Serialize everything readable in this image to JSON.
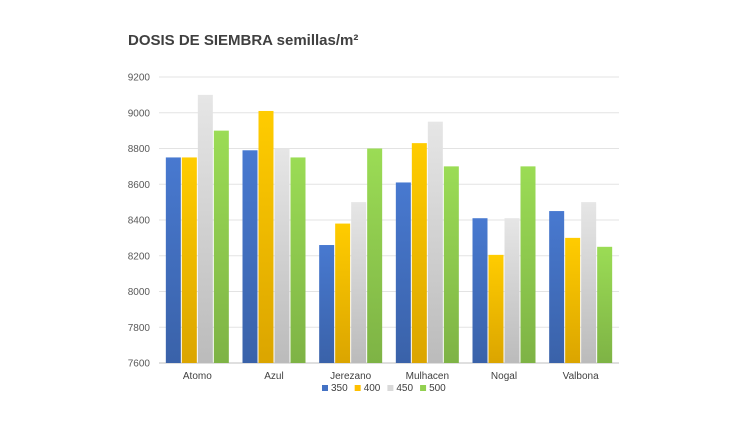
{
  "chart_data": {
    "type": "bar",
    "title": "DOSIS DE SIEMBRA semillas/m²",
    "xlabel": "",
    "ylabel": "",
    "categories": [
      "Atomo",
      "Azul",
      "Jerezano",
      "Mulhacen",
      "Nogal",
      "Valbona"
    ],
    "series": [
      {
        "name": "350",
        "color": "#4472C4",
        "values": [
          8750,
          8790,
          8260,
          8610,
          8410,
          8450
        ]
      },
      {
        "name": "400",
        "color": "#FFC000",
        "values": [
          8750,
          9010,
          8380,
          8830,
          8205,
          8300
        ]
      },
      {
        "name": "450",
        "color": "#D9D9D9",
        "values": [
          9100,
          8800,
          8500,
          8950,
          8410,
          8500
        ]
      },
      {
        "name": "500",
        "color": "#92D050",
        "values": [
          8900,
          8750,
          8800,
          8700,
          8700,
          8250
        ]
      }
    ],
    "ylim": [
      7600,
      9200
    ],
    "yticks": [
      7600,
      7800,
      8000,
      8200,
      8400,
      8600,
      8800,
      9000,
      9200
    ],
    "grid": true,
    "legend_position": "bottom"
  }
}
